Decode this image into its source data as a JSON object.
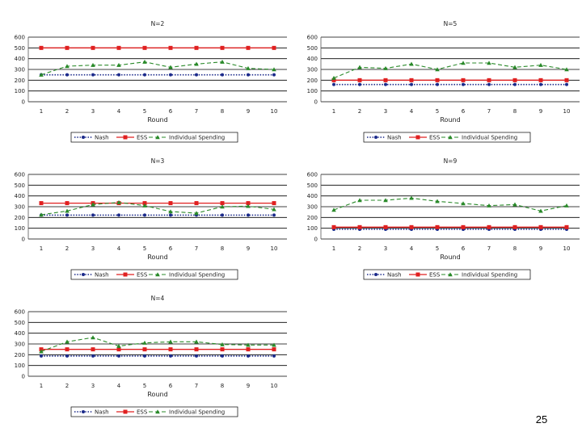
{
  "slide_number": "25",
  "colors": {
    "nash": "#1b2a8a",
    "ess": "#e02020",
    "individual": "#2a8a2a",
    "grid": "#000000"
  },
  "chart_data": [
    {
      "type": "line",
      "title": "N=2",
      "xlabel": "Round",
      "ylabel": "",
      "ylim": [
        0,
        600
      ],
      "yticks": [
        "0",
        "100",
        "200",
        "300",
        "400",
        "500",
        "600"
      ],
      "categories": [
        "1",
        "2",
        "3",
        "4",
        "5",
        "6",
        "7",
        "8",
        "9",
        "10"
      ],
      "legend": [
        "Nash",
        "ESS",
        "Individual Spending"
      ],
      "series": [
        {
          "name": "Nash",
          "values": [
            250,
            250,
            250,
            250,
            250,
            250,
            250,
            250,
            250,
            250
          ]
        },
        {
          "name": "ESS",
          "values": [
            500,
            500,
            500,
            500,
            500,
            500,
            500,
            500,
            500,
            500
          ]
        },
        {
          "name": "Individual Spending",
          "values": [
            250,
            330,
            340,
            340,
            370,
            320,
            350,
            370,
            310,
            300
          ]
        }
      ]
    },
    {
      "type": "line",
      "title": "N=5",
      "xlabel": "Round",
      "ylabel": "",
      "ylim": [
        0,
        600
      ],
      "yticks": [
        "0",
        "100",
        "200",
        "300",
        "400",
        "500",
        "600"
      ],
      "categories": [
        "1",
        "2",
        "3",
        "4",
        "5",
        "6",
        "7",
        "8",
        "9",
        "10"
      ],
      "legend": [
        "Nash",
        "ESS",
        "Individual Spending"
      ],
      "series": [
        {
          "name": "Nash",
          "values": [
            160,
            160,
            160,
            160,
            160,
            160,
            160,
            160,
            160,
            160
          ]
        },
        {
          "name": "ESS",
          "values": [
            200,
            200,
            200,
            200,
            200,
            200,
            200,
            200,
            200,
            200
          ]
        },
        {
          "name": "Individual Spending",
          "values": [
            220,
            320,
            310,
            350,
            300,
            360,
            360,
            320,
            340,
            300
          ]
        }
      ]
    },
    {
      "type": "line",
      "title": "N=3",
      "xlabel": "Round",
      "ylabel": "",
      "ylim": [
        0,
        600
      ],
      "yticks": [
        "0",
        "100",
        "200",
        "300",
        "400",
        "500",
        "600"
      ],
      "categories": [
        "1",
        "2",
        "3",
        "4",
        "5",
        "6",
        "7",
        "8",
        "9",
        "10"
      ],
      "legend": [
        "Nash",
        "ESS",
        "Individual Spending"
      ],
      "series": [
        {
          "name": "Nash",
          "values": [
            222,
            222,
            222,
            222,
            222,
            222,
            222,
            222,
            222,
            222
          ]
        },
        {
          "name": "ESS",
          "values": [
            333,
            333,
            333,
            333,
            333,
            333,
            333,
            333,
            333,
            333
          ]
        },
        {
          "name": "Individual Spending",
          "values": [
            225,
            260,
            320,
            340,
            310,
            255,
            240,
            300,
            305,
            275
          ]
        }
      ]
    },
    {
      "type": "line",
      "title": "N=9",
      "xlabel": "Round",
      "ylabel": "",
      "ylim": [
        0,
        600
      ],
      "yticks": [
        "0",
        "100",
        "200",
        "300",
        "400",
        "500",
        "600"
      ],
      "categories": [
        "1",
        "2",
        "3",
        "4",
        "5",
        "6",
        "7",
        "8",
        "9",
        "10"
      ],
      "legend": [
        "Nash",
        "ESS",
        "Individual Spending"
      ],
      "series": [
        {
          "name": "Nash",
          "values": [
            90,
            90,
            90,
            90,
            90,
            90,
            90,
            90,
            90,
            90
          ]
        },
        {
          "name": "ESS",
          "values": [
            110,
            110,
            110,
            110,
            110,
            110,
            110,
            110,
            110,
            110
          ]
        },
        {
          "name": "Individual Spending",
          "values": [
            270,
            360,
            360,
            380,
            350,
            330,
            310,
            320,
            260,
            310
          ]
        }
      ]
    },
    {
      "type": "line",
      "title": "N=4",
      "xlabel": "Round",
      "ylabel": "",
      "ylim": [
        0,
        600
      ],
      "yticks": [
        "0",
        "100",
        "200",
        "300",
        "400",
        "500",
        "600"
      ],
      "categories": [
        "1",
        "2",
        "3",
        "4",
        "5",
        "6",
        "7",
        "8",
        "9",
        "10"
      ],
      "legend": [
        "Nash",
        "ESS",
        "Individual Spending"
      ],
      "series": [
        {
          "name": "Nash",
          "values": [
            188,
            188,
            188,
            188,
            188,
            188,
            188,
            188,
            188,
            188
          ]
        },
        {
          "name": "ESS",
          "values": [
            250,
            250,
            250,
            250,
            250,
            250,
            250,
            250,
            250,
            250
          ]
        },
        {
          "name": "Individual Spending",
          "values": [
            230,
            320,
            360,
            280,
            310,
            320,
            320,
            295,
            290,
            290
          ]
        }
      ]
    }
  ]
}
